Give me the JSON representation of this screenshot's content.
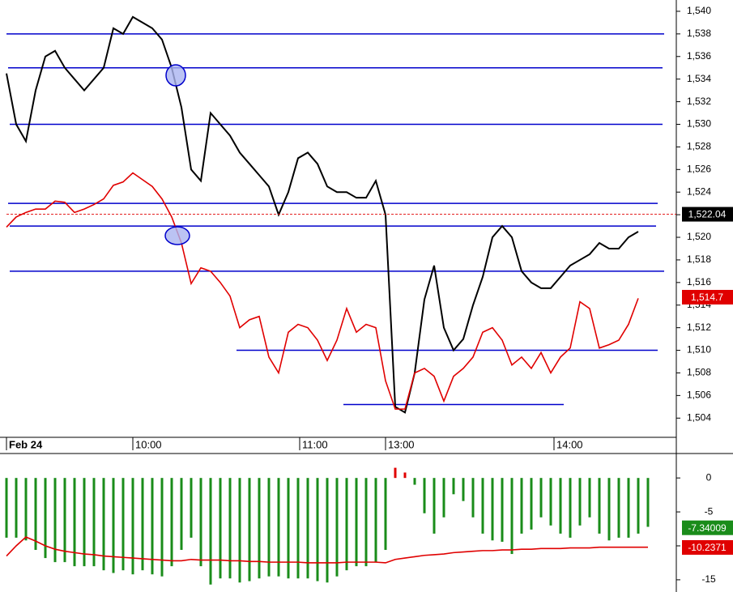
{
  "chart_data": [
    {
      "type": "line",
      "x": [
        0,
        3,
        6,
        9,
        12,
        15,
        18,
        21,
        24,
        27,
        30,
        33,
        36,
        39,
        42,
        45,
        48,
        51,
        54,
        57,
        60,
        63,
        66,
        69,
        72,
        75,
        78,
        81,
        84,
        87,
        90,
        93,
        96,
        99,
        102,
        105,
        108,
        111,
        114,
        117,
        120,
        123,
        126,
        129,
        132,
        135,
        138,
        141,
        144,
        147,
        150,
        153,
        156,
        159,
        162,
        165,
        168,
        171,
        174,
        177,
        180,
        183,
        186,
        189,
        192,
        195
      ],
      "xlim": [
        -2,
        206.75
      ],
      "xticks": [
        {
          "value": 0,
          "label": "Feb 24"
        },
        {
          "value": 39,
          "label": "10:00"
        },
        {
          "value": 90.5,
          "label": "11:00"
        },
        {
          "value": 117,
          "label": "13:00"
        },
        {
          "value": 169,
          "label": "14:00"
        }
      ],
      "ylim": [
        1502.3,
        1541
      ],
      "yticks": [
        {
          "value": 1504,
          "label": "1,504"
        },
        {
          "value": 1506,
          "label": "1,506"
        },
        {
          "value": 1508,
          "label": "1,508"
        },
        {
          "value": 1510,
          "label": "1,510"
        },
        {
          "value": 1512,
          "label": "1,512"
        },
        {
          "value": 1514,
          "label": "1,514"
        },
        {
          "value": 1516,
          "label": "1,516"
        },
        {
          "value": 1518,
          "label": "1,518"
        },
        {
          "value": 1520,
          "label": "1,520"
        },
        {
          "value": 1522,
          "label": "1,522"
        },
        {
          "value": 1524,
          "label": "1,524"
        },
        {
          "value": 1526,
          "label": "1,526"
        },
        {
          "value": 1528,
          "label": "1,528"
        },
        {
          "value": 1530,
          "label": "1,530"
        },
        {
          "value": 1532,
          "label": "1,532"
        },
        {
          "value": 1534,
          "label": "1,534"
        },
        {
          "value": 1536,
          "label": "1,536"
        },
        {
          "value": 1538,
          "label": "1,538"
        },
        {
          "value": 1540,
          "label": "1,540"
        }
      ],
      "series": [
        {
          "type": "line",
          "color": "#000000",
          "values": [
            1534.5,
            1530,
            1528.5,
            1533,
            1536,
            1536.5,
            1535,
            1534,
            1533,
            1534,
            1535,
            1538.5,
            1538,
            1539.5,
            1539,
            1538.5,
            1537.5,
            1535,
            1531.5,
            1526,
            1525,
            1531,
            1530,
            1529,
            1527.5,
            1526.5,
            1525.5,
            1524.5,
            1522,
            1524,
            1527,
            1527.5,
            1526.5,
            1524.5,
            1524,
            1524,
            1523.5,
            1523.5,
            1525,
            1522,
            1505,
            1504.5,
            1508,
            1514.5,
            1517.5,
            1512,
            1510,
            1511,
            1514,
            1516.5,
            1520,
            1521,
            1520,
            1517,
            1516,
            1515.5,
            1515.5,
            1516.5,
            1517.5,
            1518,
            1518.5,
            1519.5,
            1519,
            1519,
            1520,
            1520.5
          ],
          "last": {
            "value": 1522.04,
            "label": "1,522.04"
          }
        },
        {
          "type": "line",
          "color": "#e00000",
          "values": [
            1520.9,
            1521.8,
            1522.2,
            1522.5,
            1522.5,
            1523.2,
            1523.1,
            1522.2,
            1522.5,
            1522.9,
            1523.4,
            1524.6,
            1524.9,
            1525.7,
            1525.1,
            1524.5,
            1523.4,
            1521.8,
            1519.5,
            1515.9,
            1517.3,
            1517,
            1516,
            1514.8,
            1512,
            1512.7,
            1513,
            1509.4,
            1508,
            1511.6,
            1512.3,
            1512,
            1510.9,
            1509.1,
            1510.9,
            1513.7,
            1511.6,
            1512.3,
            1512,
            1507.3,
            1504.8,
            1504.8,
            1508,
            1508.4,
            1507.7,
            1505.5,
            1507.7,
            1508.4,
            1509.4,
            1511.6,
            1512,
            1510.9,
            1508.7,
            1509.4,
            1508.4,
            1509.8,
            1508,
            1509.4,
            1510.2,
            1514.3,
            1513.7,
            1510.2,
            1510.5,
            1510.9,
            1512.3,
            1514.6
          ],
          "last": {
            "value": 1514.7,
            "label": "1,514.7"
          }
        }
      ],
      "levels_color": "#0000cc",
      "levels": [
        {
          "value": 1538,
          "from": 0,
          "to": 203
        },
        {
          "value": 1535,
          "from": 0.5,
          "to": 202.5
        },
        {
          "value": 1530,
          "from": 1,
          "to": 202.5
        },
        {
          "value": 1523,
          "from": 0.5,
          "to": 201
        },
        {
          "value": 1521,
          "from": 1,
          "to": 200.5
        },
        {
          "value": 1517,
          "from": 1,
          "to": 203
        },
        {
          "value": 1510,
          "from": 71,
          "to": 201
        },
        {
          "value": 1505.2,
          "from": 104,
          "to": 172
        }
      ]
    },
    {
      "type": "bar",
      "x": [
        0,
        3,
        6,
        9,
        12,
        15,
        18,
        21,
        24,
        27,
        30,
        33,
        36,
        39,
        42,
        45,
        48,
        51,
        54,
        57,
        60,
        63,
        66,
        69,
        72,
        75,
        78,
        81,
        84,
        87,
        90,
        93,
        96,
        99,
        102,
        105,
        108,
        111,
        114,
        117,
        120,
        123,
        126,
        129,
        132,
        135,
        138,
        141,
        144,
        147,
        150,
        153,
        156,
        159,
        162,
        165,
        168,
        171,
        174,
        177,
        180,
        183,
        186,
        189,
        192,
        195,
        198
      ],
      "xlim": [
        -2,
        206.75
      ],
      "ylim": [
        -16.8,
        3.6
      ],
      "yticks": [
        0,
        -5,
        -10,
        -15
      ],
      "series": [
        {
          "type": "bar",
          "color": "#1a8c1a",
          "up_color": "#e00000",
          "values": [
            -8.8,
            -8.8,
            -9.2,
            -10.6,
            -11.8,
            -12.4,
            -12.4,
            -13,
            -13,
            -13,
            -13.6,
            -14,
            -13.6,
            -14.2,
            -13.6,
            -14.2,
            -14.5,
            -13,
            -10.6,
            -8.8,
            -13,
            -15.7,
            -14.8,
            -14.8,
            -15.4,
            -15.2,
            -14.8,
            -14.5,
            -14.5,
            -14.8,
            -14.8,
            -14.8,
            -15.2,
            -15.4,
            -14.5,
            -13.6,
            -13,
            -13,
            -12.4,
            -10.6,
            1.5,
            0.8,
            -1,
            -5.2,
            -8.2,
            -5.8,
            -2.4,
            -3.4,
            -5.8,
            -8.2,
            -9.2,
            -9.4,
            -11.2,
            -8.2,
            -7.6,
            -5.8,
            -7,
            -8.2,
            -8.8,
            -7,
            -5.8,
            -8.2,
            -9.2,
            -8.8,
            -8.8,
            -8.2,
            -7.2
          ],
          "last": {
            "value": -7.34009,
            "label": "-7.34009"
          }
        },
        {
          "type": "line",
          "color": "#e00000",
          "values": [
            -11.5,
            -10,
            -8.7,
            -9.3,
            -10,
            -10.5,
            -10.8,
            -11,
            -11.2,
            -11.3,
            -11.5,
            -11.6,
            -11.7,
            -11.8,
            -11.9,
            -12,
            -12.1,
            -12.2,
            -12.2,
            -12,
            -12.1,
            -12.1,
            -12.1,
            -12.2,
            -12.2,
            -12.3,
            -12.3,
            -12.4,
            -12.4,
            -12.4,
            -12.4,
            -12.5,
            -12.5,
            -12.5,
            -12.5,
            -12.4,
            -12.4,
            -12.4,
            -12.4,
            -12.5,
            -12,
            -11.8,
            -11.6,
            -11.4,
            -11.3,
            -11.2,
            -11,
            -10.9,
            -10.8,
            -10.7,
            -10.7,
            -10.6,
            -10.6,
            -10.5,
            -10.5,
            -10.4,
            -10.4,
            -10.4,
            -10.3,
            -10.3,
            -10.3,
            -10.2,
            -10.2,
            -10.2,
            -10.2,
            -10.2,
            -10.2
          ],
          "last": {
            "value": -10.2371,
            "label": "-10.2371"
          }
        }
      ]
    }
  ]
}
